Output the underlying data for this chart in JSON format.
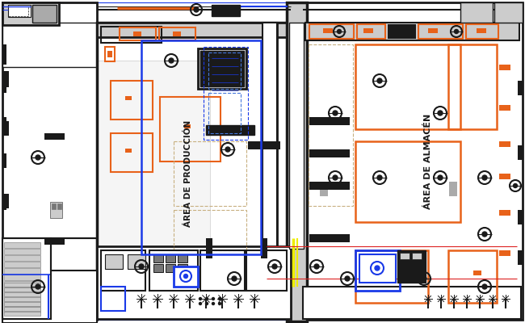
{
  "bg_color": "#ffffff",
  "wall_color": "#1a1a1a",
  "orange_color": "#e8621a",
  "blue_color": "#1a3ae8",
  "light_blue": "#4477dd",
  "dashed_orange": "#e8a060",
  "dashed_tan": "#c8b080",
  "gray_color": "#777777",
  "light_gray": "#cccccc",
  "mid_gray": "#aaaaaa",
  "yellow_color": "#eeee00",
  "red_color": "#dd2222",
  "title": "ÁREA DE PRODUCCIÓN",
  "title2": "ÁREA DE ALMACÉN"
}
